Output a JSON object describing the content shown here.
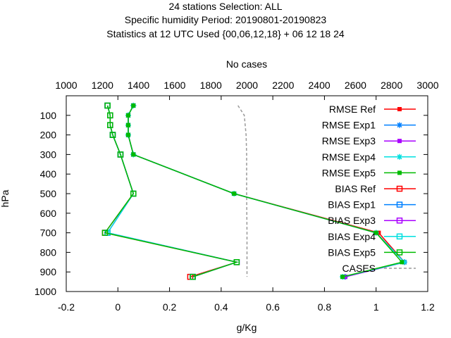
{
  "chart_data": {
    "type": "line",
    "title_lines": [
      "24 stations Selection: ALL",
      "Specific humidity  Period: 20190801-20190823",
      "Statistics at 12 UTC  Used {00,06,12,18} + 06 12 18 24"
    ],
    "top_axis_label": "No cases",
    "xlabel": "g/Kg",
    "ylabel": "hPa",
    "xlim": [
      -0.2,
      1.2
    ],
    "ylim": [
      1000,
      0
    ],
    "x_ticks": [
      "-0.2",
      "0",
      "0.2",
      "0.4",
      "0.6",
      "0.8",
      "1",
      "1.2"
    ],
    "y_ticks": [
      "100",
      "200",
      "300",
      "400",
      "500",
      "600",
      "700",
      "800",
      "900",
      "1000"
    ],
    "x2lim": [
      1000,
      3000
    ],
    "x2_ticks": [
      "1000",
      "1200",
      "1400",
      "1600",
      "1800",
      "2000",
      "2200",
      "2400",
      "2600",
      "2800",
      "3000"
    ],
    "legend_position": "top-right",
    "levels": [
      50,
      100,
      150,
      200,
      300,
      500,
      700,
      850,
      925
    ],
    "series": [
      {
        "name": "RMSE Ref",
        "color": "#ff0000",
        "marker": "filled-square",
        "values": [
          0.06,
          0.04,
          0.04,
          0.04,
          0.06,
          0.45,
          1.01,
          1.11,
          0.88
        ]
      },
      {
        "name": "RMSE Exp1",
        "color": "#0080ff",
        "marker": "star",
        "values": [
          0.06,
          0.04,
          0.04,
          0.04,
          0.06,
          0.45,
          1.0,
          1.11,
          0.88
        ]
      },
      {
        "name": "RMSE Exp3",
        "color": "#aa00ff",
        "marker": "filled-square",
        "values": [
          0.06,
          0.04,
          0.04,
          0.04,
          0.06,
          0.45,
          1.0,
          1.11,
          0.88
        ]
      },
      {
        "name": "RMSE Exp4",
        "color": "#00e0e0",
        "marker": "star",
        "values": [
          0.06,
          0.04,
          0.04,
          0.04,
          0.06,
          0.45,
          1.0,
          1.11,
          0.87
        ]
      },
      {
        "name": "RMSE Exp5",
        "color": "#00bb00",
        "marker": "filled-square",
        "values": [
          0.06,
          0.04,
          0.04,
          0.04,
          0.06,
          0.45,
          1.0,
          1.1,
          0.87
        ]
      },
      {
        "name": "BIAS Ref",
        "color": "#ff0000",
        "marker": "open-square",
        "values": [
          -0.04,
          -0.03,
          -0.03,
          -0.02,
          0.01,
          0.06,
          -0.05,
          0.46,
          0.28
        ]
      },
      {
        "name": "BIAS Exp1",
        "color": "#0080ff",
        "marker": "open-square",
        "values": [
          -0.04,
          -0.03,
          -0.03,
          -0.02,
          0.01,
          0.06,
          -0.04,
          0.46,
          0.29
        ]
      },
      {
        "name": "BIAS Exp3",
        "color": "#aa00ff",
        "marker": "open-square",
        "values": [
          -0.04,
          -0.03,
          -0.03,
          -0.02,
          0.01,
          0.06,
          -0.04,
          0.46,
          0.29
        ]
      },
      {
        "name": "BIAS Exp4",
        "color": "#00e0e0",
        "marker": "open-square",
        "values": [
          -0.04,
          -0.03,
          -0.03,
          -0.02,
          0.01,
          0.06,
          -0.04,
          0.46,
          0.29
        ]
      },
      {
        "name": "BIAS Exp5",
        "color": "#00bb00",
        "marker": "open-square",
        "values": [
          -0.04,
          -0.03,
          -0.03,
          -0.02,
          0.01,
          0.06,
          -0.05,
          0.46,
          0.29
        ]
      }
    ],
    "cases": {
      "name": "CASES",
      "color": "#999999",
      "levels": [
        50,
        100,
        150,
        200,
        300,
        500,
        700,
        850,
        925
      ],
      "values": [
        1950,
        1985,
        1990,
        1995,
        1998,
        1998,
        2000,
        2000,
        2000
      ]
    }
  }
}
